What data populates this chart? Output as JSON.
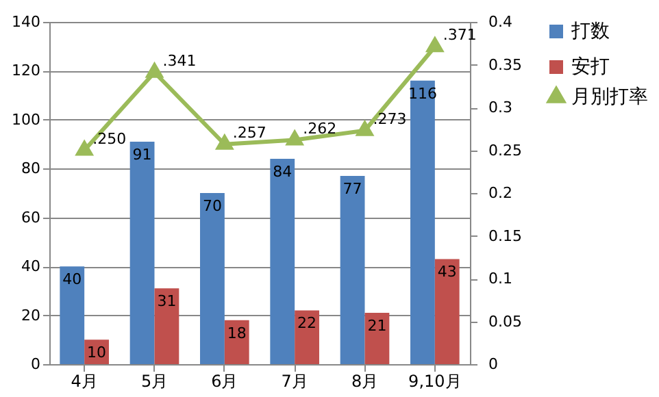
{
  "chart_data": {
    "type": "bar",
    "categories": [
      "4月",
      "5月",
      "6月",
      "7月",
      "8月",
      "9,10月"
    ],
    "series": [
      {
        "name": "打数",
        "color": "#4f81bd",
        "values": [
          40,
          91,
          70,
          84,
          77,
          116
        ],
        "value_labels": [
          "40",
          "91",
          "70",
          "84",
          "77",
          "116"
        ]
      },
      {
        "name": "安打",
        "color": "#c0504d",
        "values": [
          10,
          31,
          18,
          22,
          21,
          43
        ],
        "value_labels": [
          "10",
          "31",
          "18",
          "22",
          "21",
          "43"
        ]
      },
      {
        "name": "月別打率",
        "type": "line",
        "axis": "y2",
        "color": "#9bbb59",
        "marker": "triangle",
        "line_style": "solid",
        "values": [
          0.25,
          0.341,
          0.257,
          0.262,
          0.273,
          0.371
        ],
        "value_labels": [
          ".250",
          ".341",
          ".257",
          ".262",
          ".273",
          ".371"
        ]
      }
    ],
    "ylim": [
      0,
      140
    ],
    "yticks": [
      0,
      20,
      40,
      60,
      80,
      100,
      120,
      140
    ],
    "y2lim": [
      0,
      0.4
    ],
    "y2ticks": [
      0,
      0.05,
      0.1,
      0.15,
      0.2,
      0.25,
      0.3,
      0.35,
      0.4
    ],
    "grid": "y",
    "legend": "right"
  }
}
